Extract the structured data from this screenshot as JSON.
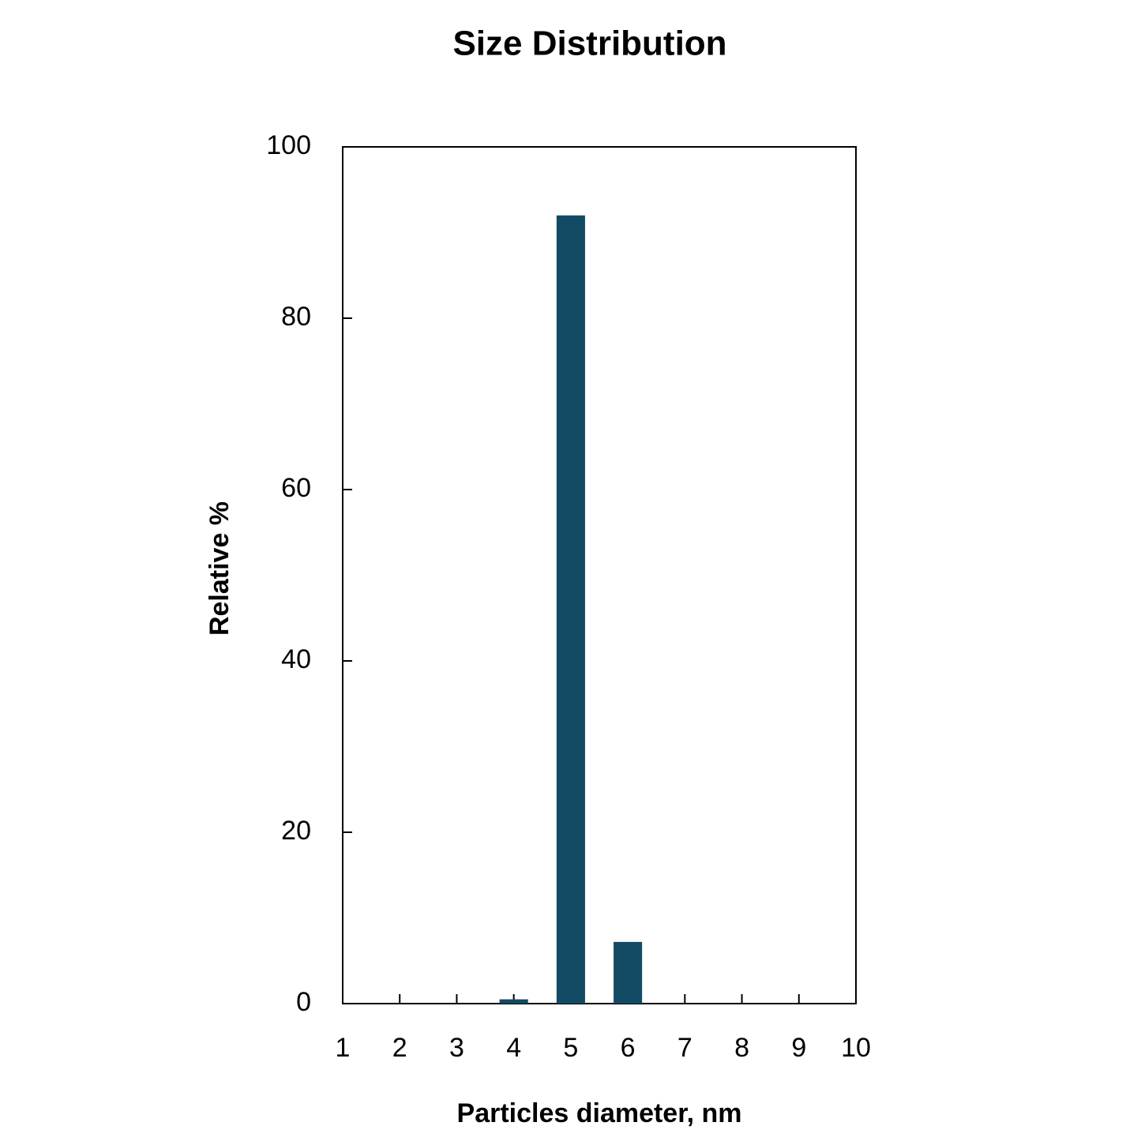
{
  "chart_data": {
    "type": "bar",
    "title": "Size Distribution",
    "x_label": "Particles diameter, nm",
    "y_label": "Relative %",
    "x": [
      4,
      5,
      6
    ],
    "values": [
      0.5,
      92,
      7.2
    ],
    "color": "#134a63",
    "xlim": [
      1,
      10
    ],
    "xticks": [
      1,
      2,
      3,
      4,
      5,
      6,
      7,
      8,
      9,
      10
    ],
    "ylim": [
      0,
      100
    ],
    "yticks": [
      0,
      20,
      40,
      60,
      80,
      100
    ],
    "grid": false
  }
}
